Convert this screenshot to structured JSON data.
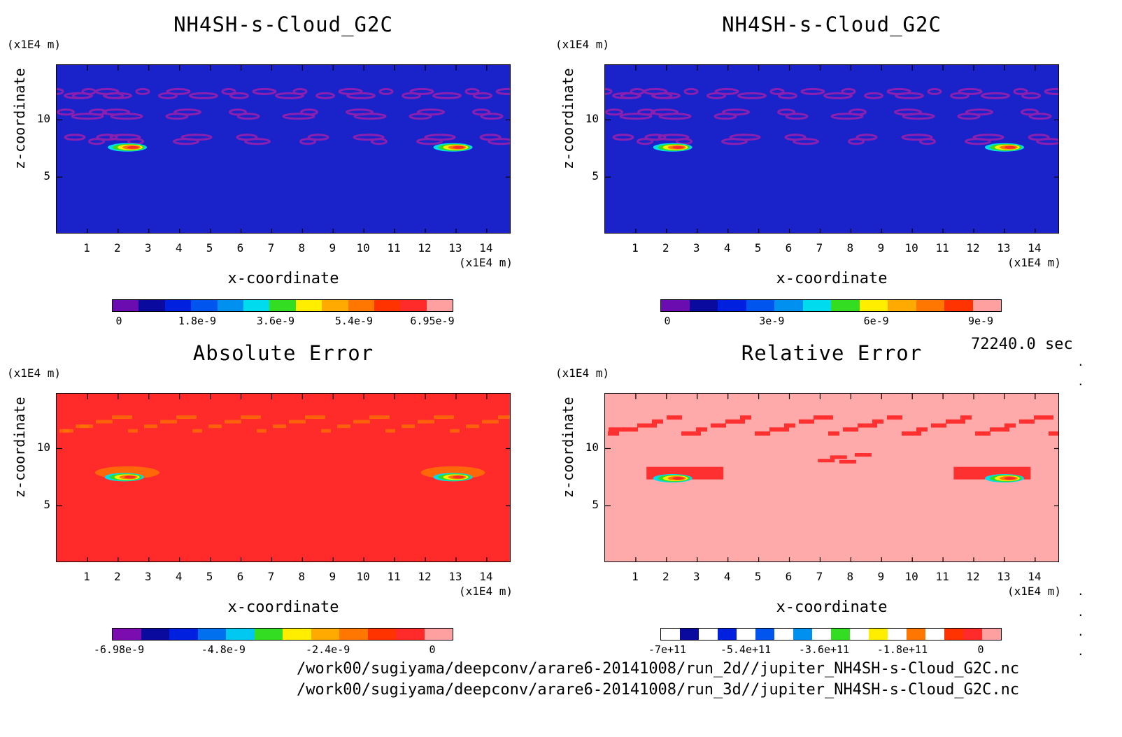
{
  "panels": [
    {
      "title": "NH4SH-s-Cloud_G2C",
      "y_unit": "(x1E4 m)",
      "x_unit": "(x1E4 m)",
      "xlabel": "x-coordinate",
      "ylabel": "z-coordinate",
      "background": "#1a23c9",
      "colorbar": {
        "colors": [
          "#6a0cb0",
          "#0a0a9e",
          "#0020e0",
          "#0055ee",
          "#0090f0",
          "#00dcee",
          "#33dd22",
          "#ffee00",
          "#ffaa00",
          "#ff7700",
          "#ff3300",
          "#ff2a2a",
          "#ffa0a0"
        ],
        "labels": [
          "0",
          "1.8e-9",
          "3.6e-9",
          "5.4e-9",
          "6.95e-9"
        ]
      }
    },
    {
      "title": "NH4SH-s-Cloud_G2C",
      "y_unit": "(x1E4 m)",
      "x_unit": "(x1E4 m)",
      "xlabel": "x-coordinate",
      "ylabel": "z-coordinate",
      "background": "#1a23c9",
      "colorbar": {
        "colors": [
          "#6a0cb0",
          "#0a0a9e",
          "#0020e0",
          "#0055ee",
          "#0090f0",
          "#00dcee",
          "#33dd22",
          "#ffee00",
          "#ffaa00",
          "#ff7700",
          "#ff3300",
          "#ffa0a0"
        ],
        "labels": [
          "0",
          "3e-9",
          "6e-9",
          "9e-9"
        ]
      }
    },
    {
      "title": "Absolute Error",
      "y_unit": "(x1E4 m)",
      "x_unit": "(x1E4 m)",
      "xlabel": "x-coordinate",
      "ylabel": "z-coordinate",
      "background": "#ff2a2a",
      "colorbar": {
        "colors": [
          "#7a0cb0",
          "#0a0a9e",
          "#0020e0",
          "#0070ee",
          "#00c8f0",
          "#33dd22",
          "#ffee00",
          "#ffaa00",
          "#ff7700",
          "#ff3300",
          "#ff2a2a",
          "#ffa0a0"
        ],
        "labels": [
          "-6.98e-9",
          "-4.8e-9",
          "-2.4e-9",
          "0"
        ]
      }
    },
    {
      "title": "Relative Error",
      "y_unit": "(x1E4 m)",
      "x_unit": "(x1E4 m)",
      "xlabel": "x-coordinate",
      "ylabel": "z-coordinate",
      "background": "#ffaaaa",
      "colorbar": {
        "colors": [
          "#ffffff",
          "#0a0a9e",
          "#ffffff",
          "#0020e0",
          "#ffffff",
          "#0055ee",
          "#ffffff",
          "#0090f0",
          "#ffffff",
          "#33dd22",
          "#ffffff",
          "#ffee00",
          "#ffffff",
          "#ff7700",
          "#ffffff",
          "#ff3300",
          "#ff2a2a",
          "#ffa0a0"
        ],
        "labels": [
          "-7e+11",
          "-5.4e+11",
          "-3.6e+11",
          "-1.8e+11",
          "0"
        ]
      }
    }
  ],
  "timestamp": "72240.0 sec",
  "files": [
    "/work00/sugiyama/deepconv/arare6-20141008/run_2d//jupiter_NH4SH-s-Cloud_G2C.nc",
    "/work00/sugiyama/deepconv/arare6-20141008/run_3d//jupiter_NH4SH-s-Cloud_G2C.nc"
  ],
  "chart_data": [
    {
      "type": "heatmap",
      "title": "NH4SH-s-Cloud_G2C",
      "xlabel": "x-coordinate",
      "ylabel": "z-coordinate",
      "x_unit": "(x1E4 m)",
      "y_unit": "(x1E4 m)",
      "xlim": [
        0,
        14.8
      ],
      "ylim": [
        0,
        14.8
      ],
      "xticks": [
        1,
        2,
        3,
        4,
        5,
        6,
        7,
        8,
        9,
        10,
        11,
        12,
        13,
        14
      ],
      "yticks": [
        5,
        10
      ],
      "colorbar": {
        "min": 0,
        "max": 6.95e-09,
        "ticks": [
          "0",
          "1.8e-9",
          "3.6e-9",
          "5.4e-9",
          "6.95e-9"
        ]
      },
      "hotspots": [
        {
          "x": 2.3,
          "z": 7.6
        },
        {
          "x": 12.9,
          "z": 7.6
        }
      ],
      "cloud_band_z": [
        12.3,
        10.5,
        8.3
      ]
    },
    {
      "type": "heatmap",
      "title": "NH4SH-s-Cloud_G2C",
      "xlabel": "x-coordinate",
      "ylabel": "z-coordinate",
      "x_unit": "(x1E4 m)",
      "y_unit": "(x1E4 m)",
      "xlim": [
        0,
        14.8
      ],
      "ylim": [
        0,
        14.8
      ],
      "xticks": [
        1,
        2,
        3,
        4,
        5,
        6,
        7,
        8,
        9,
        10,
        11,
        12,
        13,
        14
      ],
      "yticks": [
        5,
        10
      ],
      "colorbar": {
        "min": 0,
        "max": 9.7e-09,
        "ticks": [
          "0",
          "3e-9",
          "6e-9",
          "9e-9"
        ]
      },
      "hotspots": [
        {
          "x": 2.2,
          "z": 7.6
        },
        {
          "x": 13.0,
          "z": 7.6
        }
      ],
      "cloud_band_z": [
        12.3,
        10.5,
        8.3
      ]
    },
    {
      "type": "heatmap",
      "title": "Absolute Error",
      "xlabel": "x-coordinate",
      "ylabel": "z-coordinate",
      "x_unit": "(x1E4 m)",
      "y_unit": "(x1E4 m)",
      "xlim": [
        0,
        14.8
      ],
      "ylim": [
        0,
        14.8
      ],
      "xticks": [
        1,
        2,
        3,
        4,
        5,
        6,
        7,
        8,
        9,
        10,
        11,
        12,
        13,
        14
      ],
      "yticks": [
        5,
        10
      ],
      "colorbar": {
        "min": -6.98e-09,
        "max": 4e-10,
        "ticks": [
          "-6.98e-9",
          "-4.8e-9",
          "-2.4e-9",
          "0"
        ]
      },
      "hotspots": [
        {
          "x": 2.2,
          "z": 7.5
        },
        {
          "x": 12.9,
          "z": 7.5
        }
      ]
    },
    {
      "type": "heatmap",
      "title": "Relative Error",
      "xlabel": "x-coordinate",
      "ylabel": "z-coordinate",
      "x_unit": "(x1E4 m)",
      "y_unit": "(x1E4 m)",
      "xlim": [
        0,
        14.8
      ],
      "ylim": [
        0,
        14.8
      ],
      "xticks": [
        1,
        2,
        3,
        4,
        5,
        6,
        7,
        8,
        9,
        10,
        11,
        12,
        13,
        14
      ],
      "yticks": [
        5,
        10
      ],
      "colorbar": {
        "min": -700000000000.0,
        "max": 40000000000.0,
        "ticks": [
          "-7e+11",
          "-5.4e+11",
          "-3.6e+11",
          "-1.8e+11",
          "0"
        ]
      },
      "hotspots": [
        {
          "x": 2.2,
          "z": 7.4
        },
        {
          "x": 13.0,
          "z": 7.4
        }
      ]
    }
  ]
}
